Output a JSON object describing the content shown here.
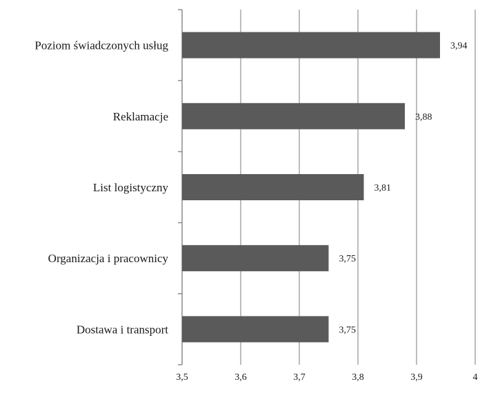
{
  "chart_data": {
    "type": "bar",
    "orientation": "horizontal",
    "categories": [
      "Poziom świadczonych usług",
      "Reklamacje",
      "List logistyczny",
      "Organizacja i pracownicy",
      "Dostawa i transport"
    ],
    "values": [
      3.94,
      3.88,
      3.81,
      3.75,
      3.75
    ],
    "value_labels": [
      "3,94",
      "3,88",
      "3,81",
      "3,75",
      "3,75"
    ],
    "xlim": [
      3.5,
      4.0
    ],
    "x_ticks": [
      3.5,
      3.6,
      3.7,
      3.8,
      3.9,
      4.0
    ],
    "x_tick_labels": [
      "3,5",
      "3,6",
      "3,7",
      "3,8",
      "3,9",
      "4"
    ],
    "grid": true,
    "bar_color": "#5a5a5a",
    "grid_color": "#a6a6a6"
  }
}
